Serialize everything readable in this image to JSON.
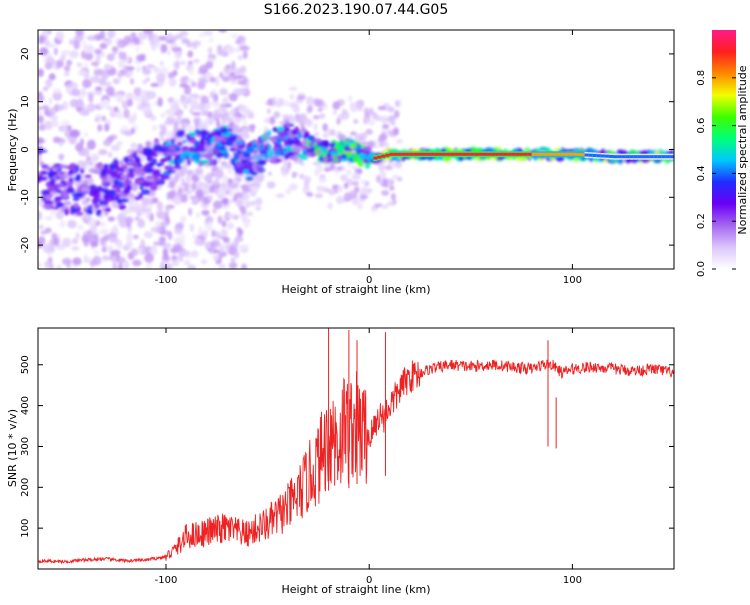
{
  "title": "S166.2023.190.07.44.G05",
  "chart_data": [
    {
      "type": "heatmap",
      "xlabel": "Height of straight line (km)",
      "ylabel": "Frequency (Hz)",
      "xlim": [
        -163,
        150
      ],
      "ylim": [
        -25,
        25
      ],
      "xticks": [
        -100,
        0,
        100
      ],
      "yticks": [
        -20,
        -10,
        0,
        10,
        20
      ],
      "colorbar": {
        "label": "Normalized spectral amplitude",
        "range": [
          0,
          1
        ],
        "ticks": [
          "0.0",
          "0.2",
          "0.4",
          "0.6",
          "0.8"
        ],
        "tick_values": [
          0.0,
          0.2,
          0.4,
          0.6,
          0.8
        ],
        "colormap": [
          "#ffffff",
          "#dcc6fb",
          "#a566f0",
          "#6a00f5",
          "#1f2dff",
          "#00c8ff",
          "#00ff7a",
          "#3dff00",
          "#f2ff00",
          "#ff8800",
          "#ff1e1e",
          "#ff1a88"
        ]
      },
      "ridge": [
        {
          "x": -160,
          "f": -8
        },
        {
          "x": -150,
          "f": -8
        },
        {
          "x": -140,
          "f": -9
        },
        {
          "x": -130,
          "f": -8
        },
        {
          "x": -120,
          "f": -7
        },
        {
          "x": -110,
          "f": -4
        },
        {
          "x": -100,
          "f": -2
        },
        {
          "x": -90,
          "f": 1
        },
        {
          "x": -80,
          "f": 0
        },
        {
          "x": -70,
          "f": 2
        },
        {
          "x": -60,
          "f": -3
        },
        {
          "x": -50,
          "f": 0
        },
        {
          "x": -40,
          "f": 2
        },
        {
          "x": -30,
          "f": 1
        },
        {
          "x": -20,
          "f": -1
        },
        {
          "x": -10,
          "f": 0
        },
        {
          "x": 0,
          "f": -2
        },
        {
          "x": 10,
          "f": -1
        },
        {
          "x": 20,
          "f": -1
        },
        {
          "x": 40,
          "f": -1
        },
        {
          "x": 60,
          "f": -1
        },
        {
          "x": 80,
          "f": -1
        },
        {
          "x": 100,
          "f": -1
        },
        {
          "x": 120,
          "f": -1.5
        },
        {
          "x": 140,
          "f": -1.5
        },
        {
          "x": 150,
          "f": -1.5
        }
      ]
    },
    {
      "type": "line",
      "xlabel": "Height of straight line (km)",
      "ylabel": "SNR (10 * v/v)",
      "xlim": [
        -163,
        150
      ],
      "ylim": [
        0,
        590
      ],
      "xticks": [
        -100,
        0,
        100
      ],
      "yticks": [
        100,
        200,
        300,
        400,
        500
      ],
      "color": "#ee2222",
      "series": [
        {
          "x": [
            -163,
            -150,
            -140,
            -130,
            -120,
            -110,
            -100,
            -95,
            -90,
            -85,
            -80,
            -75,
            -70,
            -65,
            -60,
            -55,
            -50,
            -45,
            -40,
            -35,
            -30,
            -25,
            -20,
            -17,
            -15,
            -12,
            -10,
            -8,
            -5,
            -2,
            0,
            3,
            5,
            7,
            10,
            13,
            15,
            18,
            20,
            25,
            30,
            40,
            50,
            60,
            70,
            80,
            85,
            90,
            95,
            100,
            110,
            120,
            130,
            140,
            150
          ],
          "values": [
            20,
            18,
            22,
            25,
            20,
            22,
            30,
            50,
            80,
            85,
            90,
            95,
            100,
            90,
            85,
            100,
            110,
            130,
            150,
            180,
            220,
            260,
            320,
            340,
            300,
            360,
            330,
            360,
            340,
            330,
            320,
            350,
            380,
            370,
            400,
            420,
            440,
            460,
            470,
            480,
            490,
            500,
            495,
            500,
            495,
            490,
            500,
            500,
            480,
            490,
            495,
            490,
            485,
            490,
            480
          ]
        }
      ],
      "spikes": [
        {
          "x": -20,
          "y": 590
        },
        {
          "x": -17,
          "y": 330
        },
        {
          "x": -10,
          "y": 585
        },
        {
          "x": -6,
          "y": 560
        },
        {
          "x": 8,
          "y": 580
        },
        {
          "x": 88,
          "y": 560
        },
        {
          "x": 92,
          "y": 420
        }
      ]
    }
  ]
}
